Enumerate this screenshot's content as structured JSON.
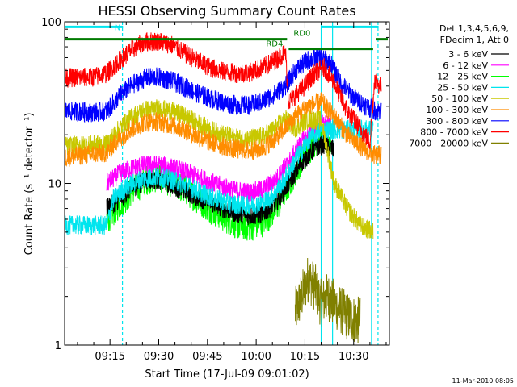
{
  "chart_data": {
    "type": "line",
    "title": "HESSI Observing Summary Count Rates",
    "xlabel": "Start Time (17-Jul-09 09:01:02)",
    "ylabel": "Count Rate (s⁻¹ detector⁻¹)",
    "yscale": "log",
    "xlim": [
      "09:01:02",
      "10:41:00"
    ],
    "ylim": [
      1,
      100
    ],
    "x_tick_labels": [
      "09:15",
      "09:30",
      "09:45",
      "10:00",
      "10:15",
      "10:30"
    ],
    "y_tick_labels": [
      "1",
      "10",
      "100"
    ],
    "grid": false,
    "legend_position": "right",
    "legend_header": [
      "Det 1,3,4,5,6,9,",
      "FDecim 1, Att 0"
    ],
    "timestamp": "11-Mar-2010 08:05",
    "annotations": [
      {
        "label": "N",
        "color": "#00e5ee",
        "segments": [
          [
            "09:01:02",
            "09:19:00"
          ],
          [
            "10:20:00",
            "10:37:40"
          ]
        ],
        "level": 93
      },
      {
        "label": "",
        "color": "#007a00",
        "segments": [
          [
            "09:01:02",
            "10:09:30"
          ]
        ],
        "level": 78
      },
      {
        "label": "RD4",
        "color": "#007a00",
        "segments": [
          [
            "10:10:00",
            "10:36:00"
          ]
        ],
        "level": 68
      },
      {
        "label": "RD0",
        "color": "#007a00",
        "segments": [
          [
            "10:36:50",
            "10:40:30"
          ]
        ],
        "level": 78
      }
    ],
    "vertical_markers": [
      {
        "time": "09:18:50",
        "style": "dashed",
        "color": "#00e5ee"
      },
      {
        "time": "10:20:00",
        "style": "solid",
        "color": "#00e5ee"
      },
      {
        "time": "10:23:30",
        "style": "solid",
        "color": "#00e5ee"
      },
      {
        "time": "10:35:30",
        "style": "solid",
        "color": "#00e5ee"
      },
      {
        "time": "10:37:30",
        "style": "dashed",
        "color": "#00e5ee"
      }
    ],
    "series": [
      {
        "name": "3 - 6 keV",
        "color": "#000000",
        "start": "09:14:00",
        "end": "10:24:00",
        "points": [
          [
            "09:14:00",
            7.0
          ],
          [
            "09:18:00",
            8.0
          ],
          [
            "09:22:00",
            9.5
          ],
          [
            "09:26:00",
            10.5
          ],
          [
            "09:30:00",
            10.5
          ],
          [
            "09:34:00",
            9.8
          ],
          [
            "09:38:00",
            9.0
          ],
          [
            "09:42:00",
            8.2
          ],
          [
            "09:46:00",
            7.6
          ],
          [
            "09:50:00",
            7.0
          ],
          [
            "09:54:00",
            6.5
          ],
          [
            "09:58:00",
            6.3
          ],
          [
            "10:02:00",
            6.5
          ],
          [
            "10:06:00",
            7.6
          ],
          [
            "10:10:00",
            10.0
          ],
          [
            "10:14:00",
            13.5
          ],
          [
            "10:18:00",
            16.5
          ],
          [
            "10:21:00",
            17.5
          ],
          [
            "10:24:00",
            16.0
          ]
        ]
      },
      {
        "name": "6 - 12 keV",
        "color": "#ff00ff",
        "start": "09:14:00",
        "end": "10:23:00",
        "points": [
          [
            "09:14:00",
            10.0
          ],
          [
            "09:18:00",
            11.5
          ],
          [
            "09:22:00",
            12.5
          ],
          [
            "09:26:00",
            13.0
          ],
          [
            "09:30:00",
            13.0
          ],
          [
            "09:34:00",
            12.5
          ],
          [
            "09:38:00",
            11.8
          ],
          [
            "09:42:00",
            11.0
          ],
          [
            "09:46:00",
            10.2
          ],
          [
            "09:50:00",
            9.5
          ],
          [
            "09:54:00",
            9.0
          ],
          [
            "09:58:00",
            8.8
          ],
          [
            "10:02:00",
            9.2
          ],
          [
            "10:06:00",
            10.5
          ],
          [
            "10:10:00",
            13.5
          ],
          [
            "10:14:00",
            18.0
          ],
          [
            "10:18:00",
            22.0
          ],
          [
            "10:21:00",
            23.5
          ],
          [
            "10:23:00",
            22.0
          ]
        ]
      },
      {
        "name": "12 - 25 keV",
        "color": "#00ff00",
        "start": "09:14:00",
        "end": "10:23:00",
        "points": [
          [
            "09:14:00",
            6.0
          ],
          [
            "09:18:00",
            7.5
          ],
          [
            "09:22:00",
            9.0
          ],
          [
            "09:26:00",
            10.5
          ],
          [
            "09:30:00",
            11.0
          ],
          [
            "09:34:00",
            10.2
          ],
          [
            "09:38:00",
            9.2
          ],
          [
            "09:42:00",
            8.0
          ],
          [
            "09:46:00",
            7.0
          ],
          [
            "09:50:00",
            6.2
          ],
          [
            "09:54:00",
            5.6
          ],
          [
            "09:58:00",
            5.4
          ],
          [
            "10:02:00",
            5.8
          ],
          [
            "10:06:00",
            7.0
          ],
          [
            "10:10:00",
            10.0
          ],
          [
            "10:14:00",
            14.0
          ],
          [
            "10:18:00",
            18.0
          ],
          [
            "10:21:00",
            19.5
          ],
          [
            "10:23:00",
            18.0
          ]
        ]
      },
      {
        "name": "25 - 50 keV",
        "color": "#00e5ee",
        "start": "09:01:02",
        "end": "10:36:00",
        "points": [
          [
            "09:01:02",
            5.5
          ],
          [
            "09:10:00",
            5.5
          ],
          [
            "09:14:00",
            5.5
          ],
          [
            "09:16:00",
            8.0
          ],
          [
            "09:20:00",
            9.5
          ],
          [
            "09:24:00",
            10.5
          ],
          [
            "09:28:00",
            11.0
          ],
          [
            "09:32:00",
            10.8
          ],
          [
            "09:36:00",
            10.2
          ],
          [
            "09:40:00",
            9.4
          ],
          [
            "09:44:00",
            8.6
          ],
          [
            "09:48:00",
            8.0
          ],
          [
            "09:52:00",
            7.5
          ],
          [
            "09:56:00",
            7.3
          ],
          [
            "10:00:00",
            7.4
          ],
          [
            "10:04:00",
            8.0
          ],
          [
            "10:08:00",
            10.0
          ],
          [
            "10:12:00",
            14.0
          ],
          [
            "10:16:00",
            18.5
          ],
          [
            "10:20:00",
            21.5
          ]
        ]
      },
      {
        "name": "50 - 100 keV",
        "color": "#c8c800",
        "start": "09:01:02",
        "end": "10:36:00",
        "points": [
          [
            "09:01:02",
            17.0
          ],
          [
            "09:14:00",
            17.5
          ],
          [
            "09:18:00",
            22.0
          ],
          [
            "09:22:00",
            26.0
          ],
          [
            "09:26:00",
            28.5
          ],
          [
            "09:30:00",
            29.0
          ],
          [
            "09:34:00",
            28.0
          ],
          [
            "09:38:00",
            26.0
          ],
          [
            "09:42:00",
            23.5
          ],
          [
            "09:46:00",
            21.5
          ],
          [
            "09:50:00",
            20.0
          ],
          [
            "09:54:00",
            19.0
          ],
          [
            "09:58:00",
            18.8
          ],
          [
            "10:02:00",
            19.5
          ],
          [
            "10:06:00",
            22.0
          ],
          [
            "10:09:00",
            25.0
          ],
          [
            "10:12:00",
            22.0
          ],
          [
            "10:16:00",
            25.0
          ],
          [
            "10:20:00",
            24.5
          ],
          [
            "10:24:00",
            10.0
          ],
          [
            "10:28:00",
            7.0
          ],
          [
            "10:32:00",
            5.5
          ],
          [
            "10:36:00",
            5.0
          ]
        ]
      },
      {
        "name": "100 - 300 keV",
        "color": "#ff8c00",
        "start": "09:01:02",
        "end": "10:38:30",
        "points": [
          [
            "09:01:02",
            14.5
          ],
          [
            "09:14:00",
            15.5
          ],
          [
            "09:18:00",
            19.0
          ],
          [
            "09:22:00",
            22.0
          ],
          [
            "09:26:00",
            24.0
          ],
          [
            "09:30:00",
            24.0
          ],
          [
            "09:34:00",
            23.0
          ],
          [
            "09:38:00",
            21.5
          ],
          [
            "09:42:00",
            19.5
          ],
          [
            "09:46:00",
            18.0
          ],
          [
            "09:50:00",
            17.0
          ],
          [
            "09:54:00",
            16.2
          ],
          [
            "09:58:00",
            16.0
          ],
          [
            "10:02:00",
            16.5
          ],
          [
            "10:06:00",
            19.0
          ],
          [
            "10:09:00",
            22.0
          ],
          [
            "10:12:00",
            26.0
          ],
          [
            "10:16:00",
            30.0
          ],
          [
            "10:20:00",
            32.0
          ],
          [
            "10:24:00",
            26.0
          ],
          [
            "10:28:00",
            20.0
          ],
          [
            "10:32:00",
            17.0
          ],
          [
            "10:36:00",
            15.0
          ]
        ]
      },
      {
        "name": "300 - 800 keV",
        "color": "#0000ff",
        "start": "09:01:02",
        "end": "10:38:30",
        "points": [
          [
            "09:01:02",
            28.0
          ],
          [
            "09:10:00",
            27.5
          ],
          [
            "09:14:00",
            28.0
          ],
          [
            "09:18:00",
            35.0
          ],
          [
            "09:22:00",
            41.0
          ],
          [
            "09:26:00",
            45.0
          ],
          [
            "09:30:00",
            45.5
          ],
          [
            "09:34:00",
            43.0
          ],
          [
            "09:38:00",
            39.5
          ],
          [
            "09:42:00",
            36.0
          ],
          [
            "09:46:00",
            33.5
          ],
          [
            "09:50:00",
            31.5
          ],
          [
            "09:54:00",
            30.5
          ],
          [
            "09:58:00",
            30.5
          ],
          [
            "10:02:00",
            32.0
          ],
          [
            "10:06:00",
            36.0
          ],
          [
            "10:09:00",
            40.0
          ],
          [
            "10:12:00",
            50.0
          ],
          [
            "10:16:00",
            58.0
          ],
          [
            "10:20:00",
            60.0
          ],
          [
            "10:23:00",
            55.0
          ],
          [
            "10:26:00",
            42.0
          ],
          [
            "10:30:00",
            34.0
          ],
          [
            "10:34:00",
            30.0
          ],
          [
            "10:37:00",
            28.0
          ]
        ]
      },
      {
        "name": "800 - 7000 keV",
        "color": "#ff0000",
        "start": "09:01:02",
        "end": "10:38:30",
        "points": [
          [
            "09:01:02",
            45.0
          ],
          [
            "09:10:00",
            45.5
          ],
          [
            "09:14:00",
            48.0
          ],
          [
            "09:18:00",
            58.0
          ],
          [
            "09:22:00",
            68.0
          ],
          [
            "09:26:00",
            75.0
          ],
          [
            "09:30:00",
            76.0
          ],
          [
            "09:34:00",
            72.0
          ],
          [
            "09:38:00",
            64.0
          ],
          [
            "09:42:00",
            57.0
          ],
          [
            "09:46:00",
            52.0
          ],
          [
            "09:50:00",
            49.0
          ],
          [
            "09:54:00",
            48.0
          ],
          [
            "09:58:00",
            48.5
          ],
          [
            "10:02:00",
            52.0
          ],
          [
            "10:06:00",
            58.0
          ],
          [
            "10:09:00",
            65.0
          ],
          [
            "10:10:00",
            32.0
          ],
          [
            "10:14:00",
            38.0
          ],
          [
            "10:18:00",
            48.0
          ],
          [
            "10:21:00",
            52.0
          ],
          [
            "10:24:00",
            42.0
          ],
          [
            "10:28:00",
            28.0
          ],
          [
            "10:32:00",
            22.0
          ],
          [
            "10:35:00",
            18.0
          ],
          [
            "10:36:30",
            45.0
          ],
          [
            "10:38:00",
            40.0
          ]
        ]
      },
      {
        "name": "7000 - 20000 keV",
        "color": "#808000",
        "start": "10:12:00",
        "end": "10:32:00",
        "points": [
          [
            "10:12:00",
            1.6
          ],
          [
            "10:14:00",
            2.0
          ],
          [
            "10:16:00",
            2.6
          ],
          [
            "10:18:00",
            2.3
          ],
          [
            "10:20:00",
            1.8
          ],
          [
            "10:22:00",
            2.0
          ],
          [
            "10:24:00",
            1.8
          ],
          [
            "10:28:00",
            1.5
          ],
          [
            "10:32:00",
            1.4
          ]
        ]
      }
    ]
  }
}
